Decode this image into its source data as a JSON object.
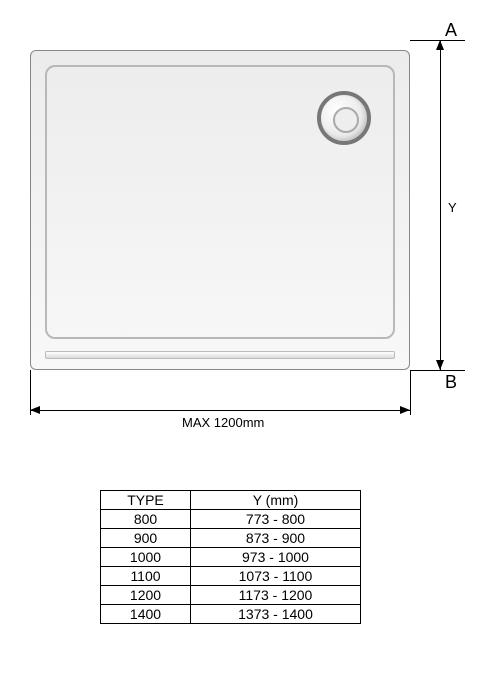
{
  "diagram": {
    "type": "technical-drawing",
    "markerA": "A",
    "markerB": "B",
    "dimY": "Y",
    "dimBottom": "MAX 1200mm",
    "colors": {
      "outline": "#888888",
      "inner_border": "#b8b8b8",
      "drain_ring": "#777777",
      "dimension": "#000000",
      "background": "#ffffff"
    }
  },
  "table": {
    "columns": [
      "TYPE",
      "Y (mm)"
    ],
    "rows": [
      [
        "800",
        "773 - 800"
      ],
      [
        "900",
        "873 - 900"
      ],
      [
        "1000",
        "973 - 1000"
      ],
      [
        "1100",
        "1073 - 1100"
      ],
      [
        "1200",
        "1173 - 1200"
      ],
      [
        "1400",
        "1373 - 1400"
      ]
    ]
  }
}
